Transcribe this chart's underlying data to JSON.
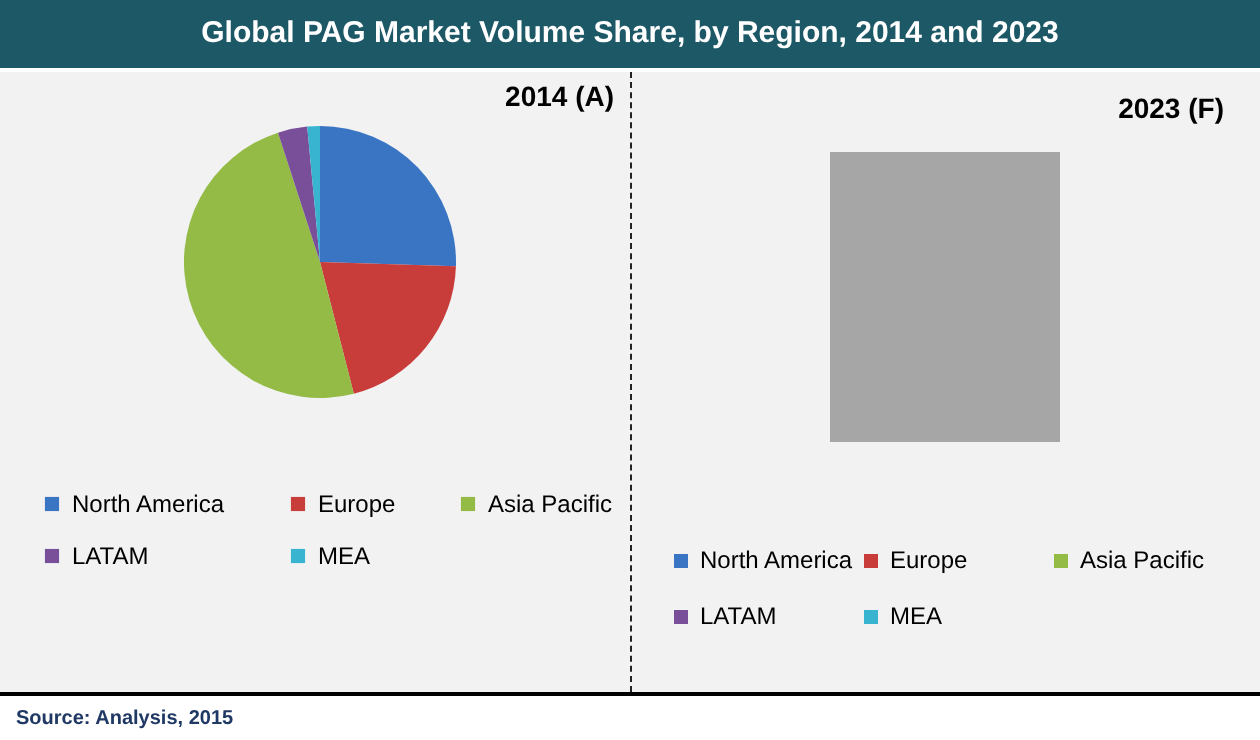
{
  "chart_data": [
    {
      "type": "pie",
      "title": "2014 (A)",
      "annotations": [
        "Global PAG Market Volume Share, by Region, 2014 and 2023",
        "Source: Analysis, 2015"
      ],
      "categories": [
        "North America",
        "Europe",
        "Asia Pacific",
        "LATAM",
        "MEA"
      ],
      "values": [
        25.5,
        20.5,
        49,
        3.5,
        1.5
      ],
      "colors": [
        "#3a75c4",
        "#c83c3a",
        "#93bb46",
        "#7a4f9a",
        "#38b3d0"
      ],
      "legend": "bottom"
    },
    {
      "type": "other",
      "title": "2023 (F)",
      "categories": [
        "North America",
        "Europe",
        "Asia Pacific",
        "LATAM",
        "MEA"
      ],
      "colors": [
        "#3a75c4",
        "#c83c3a",
        "#93bb46",
        "#7a4f9a",
        "#38b3d0"
      ]
    }
  ]
}
